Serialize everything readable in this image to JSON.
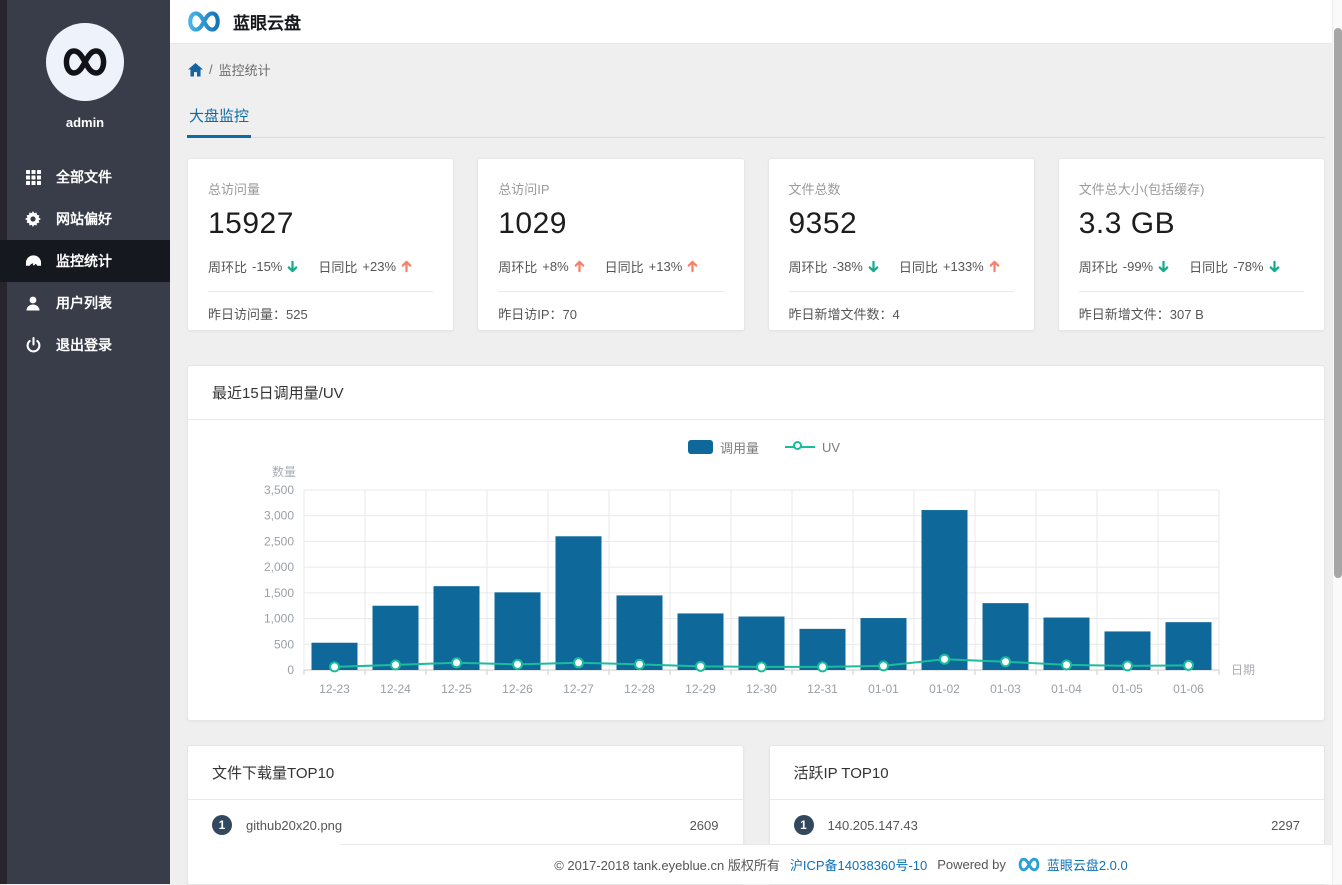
{
  "app": {
    "title": "蓝眼云盘"
  },
  "sidebar": {
    "username": "admin",
    "items": [
      {
        "label": "全部文件",
        "icon": "grid-icon",
        "active": false
      },
      {
        "label": "网站偏好",
        "icon": "gear-icon",
        "active": false
      },
      {
        "label": "监控统计",
        "icon": "gauge-icon",
        "active": true
      },
      {
        "label": "用户列表",
        "icon": "user-icon",
        "active": false
      },
      {
        "label": "退出登录",
        "icon": "power-icon",
        "active": false
      }
    ]
  },
  "breadcrumb": {
    "separator": "/",
    "current": "监控统计"
  },
  "tabs": [
    {
      "label": "大盘监控",
      "active": true
    }
  ],
  "stat_cards": [
    {
      "title": "总访问量",
      "value": "15927",
      "wow_label": "周环比",
      "wow_value": "-15%",
      "wow_dir": "down",
      "dod_label": "日同比",
      "dod_value": "+23%",
      "dod_dir": "up",
      "footer_label": "昨日访问量：",
      "footer_value": "525"
    },
    {
      "title": "总访问IP",
      "value": "1029",
      "wow_label": "周环比",
      "wow_value": "+8%",
      "wow_dir": "up",
      "dod_label": "日同比",
      "dod_value": "+13%",
      "dod_dir": "up",
      "footer_label": "昨日访IP：",
      "footer_value": "70"
    },
    {
      "title": "文件总数",
      "value": "9352",
      "wow_label": "周环比",
      "wow_value": "-38%",
      "wow_dir": "down",
      "dod_label": "日同比",
      "dod_value": "+133%",
      "dod_dir": "up",
      "footer_label": "昨日新增文件数：",
      "footer_value": "4"
    },
    {
      "title": "文件总大小(包括缓存)",
      "value": "3.3 GB",
      "wow_label": "周环比",
      "wow_value": "-99%",
      "wow_dir": "down",
      "dod_label": "日同比",
      "dod_value": "-78%",
      "dod_dir": "down",
      "footer_label": "昨日新增文件：",
      "footer_value": "307 B"
    }
  ],
  "chart_data": {
    "type": "bar",
    "title": "最近15日调用量/UV",
    "xlabel": "日期",
    "ylabel": "数量",
    "ylim": [
      0,
      3500
    ],
    "yticks": [
      0,
      500,
      1000,
      1500,
      2000,
      2500,
      3000,
      3500
    ],
    "ytick_labels": [
      "0",
      "500",
      "1,000",
      "1,500",
      "2,000",
      "2,500",
      "3,000",
      "3,500"
    ],
    "grid": true,
    "legend_position": "top",
    "categories": [
      "12-23",
      "12-24",
      "12-25",
      "12-26",
      "12-27",
      "12-28",
      "12-29",
      "12-30",
      "12-31",
      "01-01",
      "01-02",
      "01-03",
      "01-04",
      "01-05",
      "01-06"
    ],
    "series": [
      {
        "name": "调用量",
        "type": "bar",
        "values": [
          530,
          1250,
          1630,
          1510,
          2600,
          1450,
          1100,
          1040,
          800,
          1010,
          3110,
          1300,
          1020,
          750,
          930
        ]
      },
      {
        "name": "UV",
        "type": "line",
        "values": [
          60,
          100,
          140,
          110,
          140,
          110,
          70,
          60,
          60,
          80,
          210,
          160,
          100,
          80,
          90
        ]
      }
    ]
  },
  "top_lists": [
    {
      "title": "文件下载量TOP10",
      "items": [
        {
          "rank": "1",
          "name": "github20x20.png",
          "value": "2609"
        }
      ]
    },
    {
      "title": "活跃IP TOP10",
      "items": [
        {
          "rank": "1",
          "name": "140.205.147.43",
          "value": "2297"
        }
      ]
    }
  ],
  "footer": {
    "copyright": "© 2017-2018 tank.eyeblue.cn 版权所有",
    "icp": "沪ICP备14038360号-10",
    "powered_by": "Powered by",
    "product": "蓝眼云盘2.0.0"
  },
  "colors": {
    "accent": "#0d6ba5",
    "bar": "#0e699a",
    "line": "#1abc9c",
    "trend_up": "#f5806b",
    "trend_down": "#13ab8b",
    "badge": "#31485e",
    "sidebar_bg": "#393d49",
    "sidebar_active_bg": "#16181f",
    "logo_blue": "#2aa0d8"
  }
}
